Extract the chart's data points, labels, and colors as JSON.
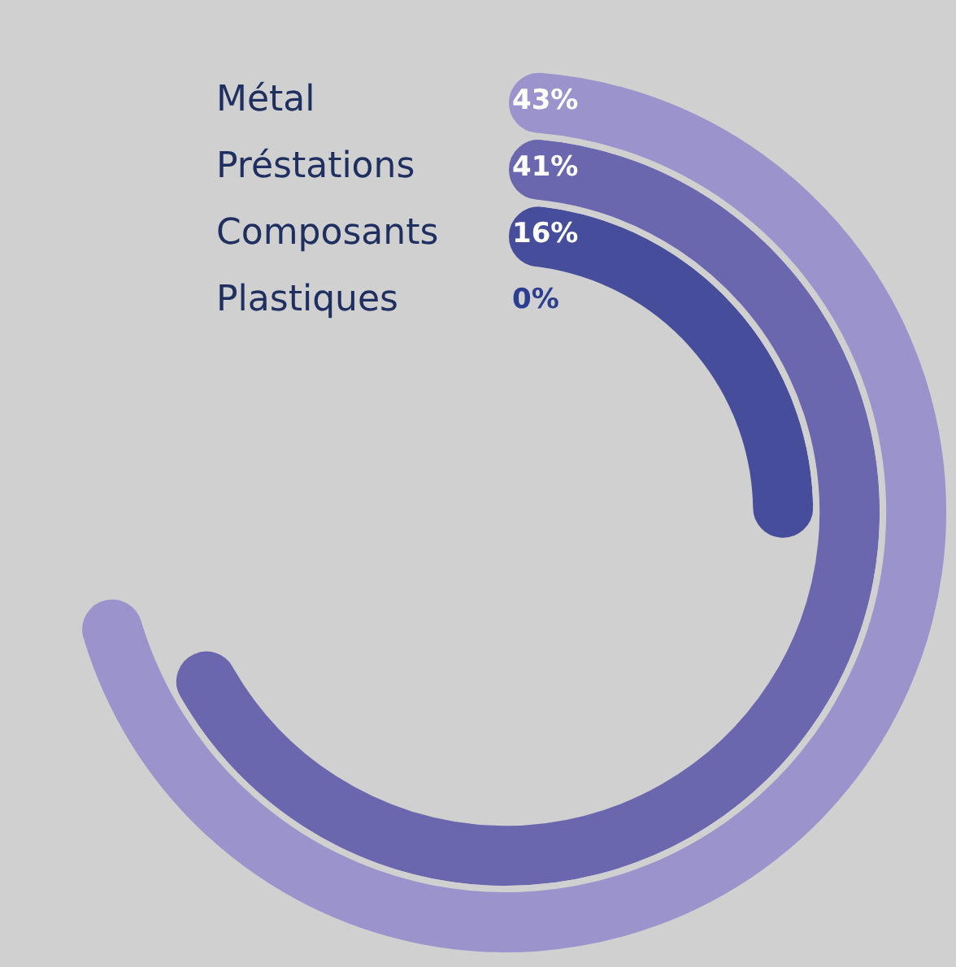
{
  "chart_data": {
    "type": "other",
    "categories": [
      "Métal",
      "Préstations",
      "Composants",
      "Plastiques"
    ],
    "values": [
      43,
      41,
      16,
      0
    ],
    "colors": [
      "#9b93cb",
      "#6b67ae",
      "#464d9a",
      "#2c3e8f"
    ],
    "value_labels": [
      "43%",
      "41%",
      "16%",
      "0%"
    ]
  }
}
